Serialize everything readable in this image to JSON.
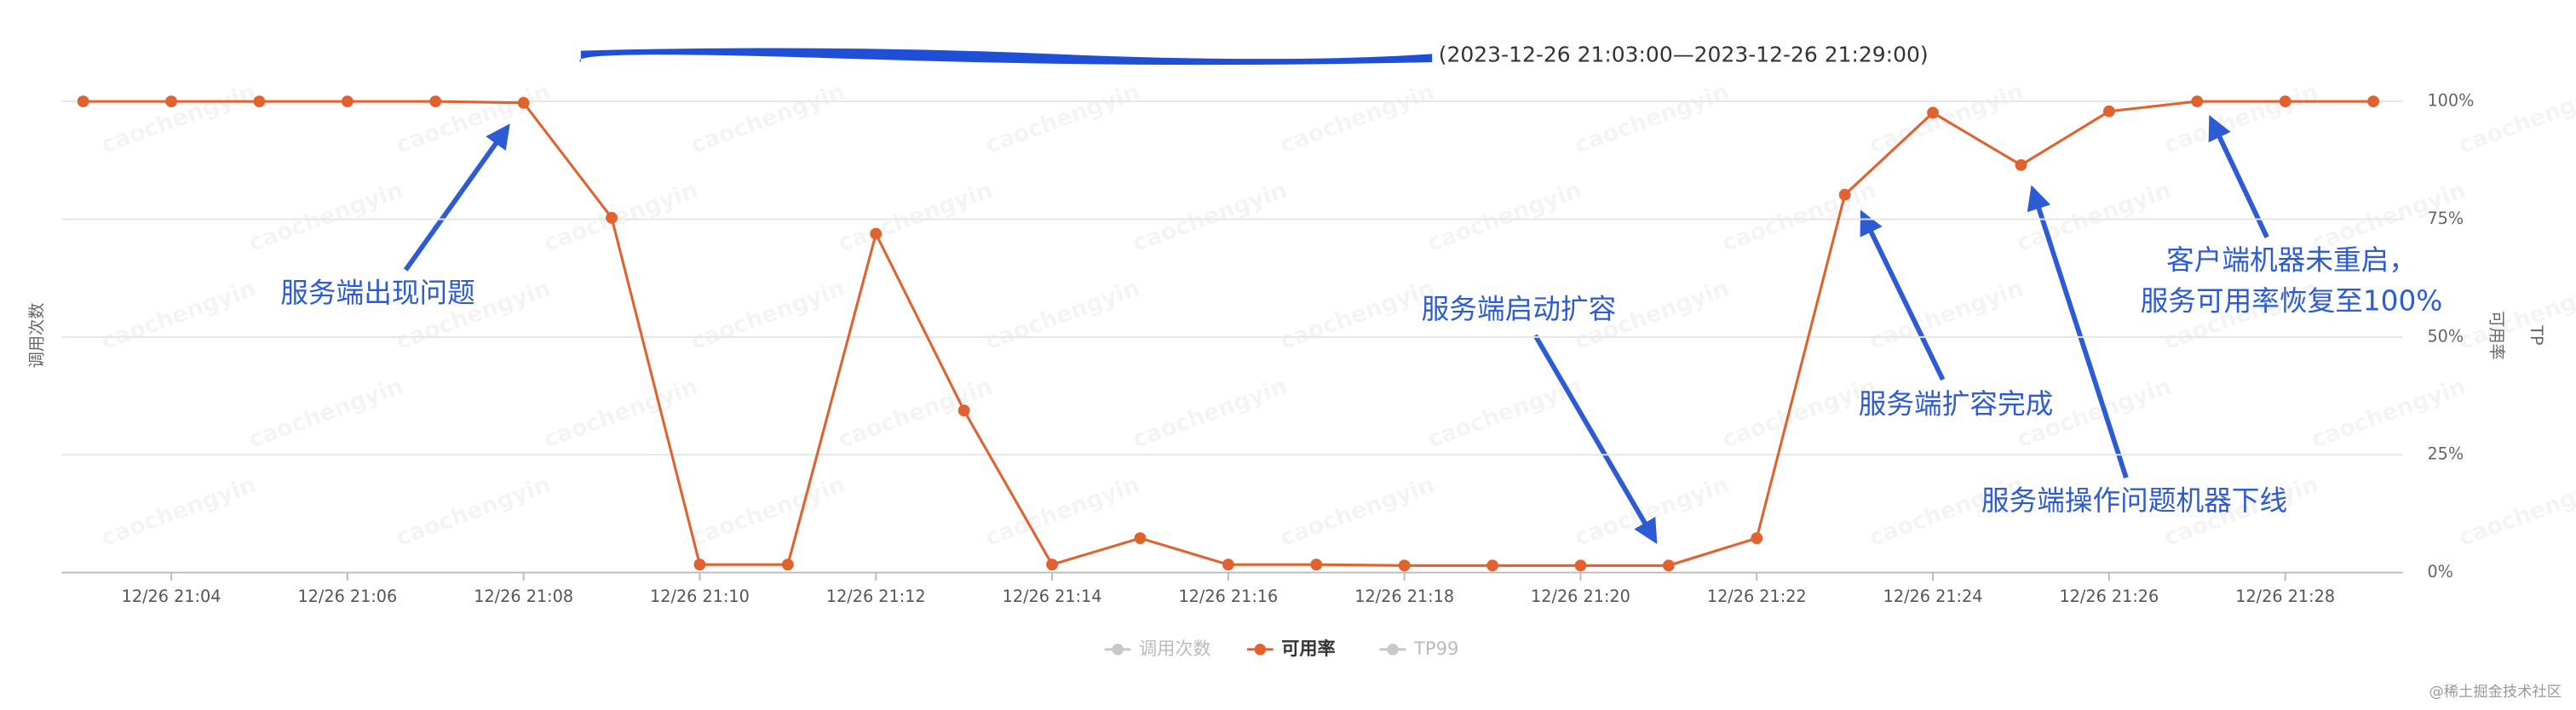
{
  "chart_data": {
    "type": "line",
    "title": "(2023-12-26 21:03:00—2023-12-26 21:29:00)",
    "y_label_left": "调用次数",
    "y_label_right": "可用率",
    "y_label_far_right": "TP",
    "categories": [
      null,
      "12/26 21:04",
      null,
      "12/26 21:06",
      null,
      "12/26 21:08",
      null,
      "12/26 21:10",
      null,
      "12/26 21:12",
      null,
      "12/26 21:14",
      null,
      "12/26 21:16",
      null,
      "12/26 21:18",
      null,
      "12/26 21:20",
      null,
      "12/26 21:22",
      null,
      "12/26 21:24",
      null,
      "12/26 21:26",
      null,
      "12/26 21:28",
      null
    ],
    "series": [
      {
        "name": "可用率",
        "color": "#e0622f",
        "values": [
          100,
          100,
          100,
          100,
          100,
          99.7,
          75.3,
          1.7,
          1.7,
          71.9,
          34.4,
          1.7,
          7.3,
          1.7,
          1.7,
          1.5,
          1.5,
          1.5,
          1.5,
          7.3,
          80.2,
          97.6,
          86.5,
          97.9,
          100,
          100,
          100
        ]
      }
    ],
    "legend": [
      {
        "name": "调用次数",
        "color": "#c8c8c8"
      },
      {
        "name": "可用率",
        "color": "#e0622f"
      },
      {
        "name": "TP99",
        "color": "#c8c8c8"
      }
    ],
    "ylim": [
      0,
      100
    ],
    "yticks": [
      {
        "value": 0,
        "label": "0%"
      },
      {
        "value": 25,
        "label": "25%"
      },
      {
        "value": 50,
        "label": "50%"
      },
      {
        "value": 75,
        "label": "75%"
      },
      {
        "value": 100,
        "label": "100%"
      }
    ],
    "grid": true,
    "annotations": [
      {
        "lines": [
          "服务端出现问题"
        ]
      },
      {
        "lines": [
          "服务端启动扩容"
        ]
      },
      {
        "lines": [
          "服务端扩容完成"
        ]
      },
      {
        "lines": [
          "服务端操作问题机器下线"
        ]
      },
      {
        "lines": [
          "客户端机器未重启，",
          "服务可用率恢复至100%"
        ]
      }
    ],
    "watermark": "caochengyin",
    "footer": "@稀土掘金技术社区"
  }
}
